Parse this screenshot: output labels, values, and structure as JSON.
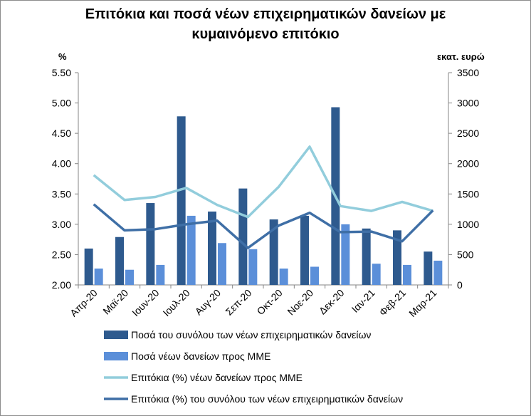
{
  "chart_data": {
    "type": "bar",
    "title_line1": "Επιτόκια και ποσά νέων επιχειρηματικών δανείων με",
    "title_line2": "κυμαινόμενο επιτόκιο",
    "ylabel_left": "%",
    "ylabel_right": "εκατ. ευρώ",
    "categories": [
      "Απρ-20",
      "Μαϊ-20",
      "Ιουν-20",
      "Ιουλ-20",
      "Αυγ-20",
      "Σεπ-20",
      "Οκτ-20",
      "Νοε-20",
      "Δεκ-20",
      "Ιαν-21",
      "Φεβ-21",
      "Μαρ-21"
    ],
    "ylim_left": [
      2.0,
      5.5
    ],
    "ylim_right": [
      0,
      3500
    ],
    "yticks_left": [
      "2.00",
      "2.50",
      "3.00",
      "3.50",
      "4.00",
      "4.50",
      "5.00",
      "5.50"
    ],
    "yticks_right": [
      "0",
      "500",
      "1000",
      "1500",
      "2000",
      "2500",
      "3000",
      "3500"
    ],
    "series": [
      {
        "name": "Ποσά του συνόλου των νέων επιχειρηματικών δανείων",
        "kind": "bar",
        "axis": "right",
        "color": "#2e5a8e",
        "values": [
          600,
          790,
          1350,
          2780,
          1210,
          1590,
          1080,
          1140,
          2930,
          930,
          900,
          550
        ]
      },
      {
        "name": "Ποσά νέων δανείων προς ΜΜΕ",
        "kind": "bar",
        "axis": "right",
        "color": "#5b8fd9",
        "values": [
          270,
          250,
          330,
          1140,
          690,
          590,
          270,
          300,
          1000,
          350,
          330,
          400
        ]
      },
      {
        "name": "Επιτόκια (%) νέων δανείων προς ΜΜΕ",
        "kind": "line",
        "axis": "left",
        "color": "#92cddc",
        "values": [
          3.81,
          3.4,
          3.45,
          3.6,
          3.32,
          3.12,
          3.62,
          4.28,
          3.3,
          3.22,
          3.37,
          3.22
        ]
      },
      {
        "name": "Επιτόκια (%) του συνόλου των νέων επιχειρηματικών δανείων",
        "kind": "line",
        "axis": "left",
        "color": "#3f6fa6",
        "values": [
          3.33,
          2.9,
          2.92,
          3.0,
          3.06,
          2.61,
          2.98,
          3.19,
          2.87,
          2.88,
          2.72,
          3.23
        ]
      }
    ],
    "legend_position": "bottom",
    "grid": false
  }
}
